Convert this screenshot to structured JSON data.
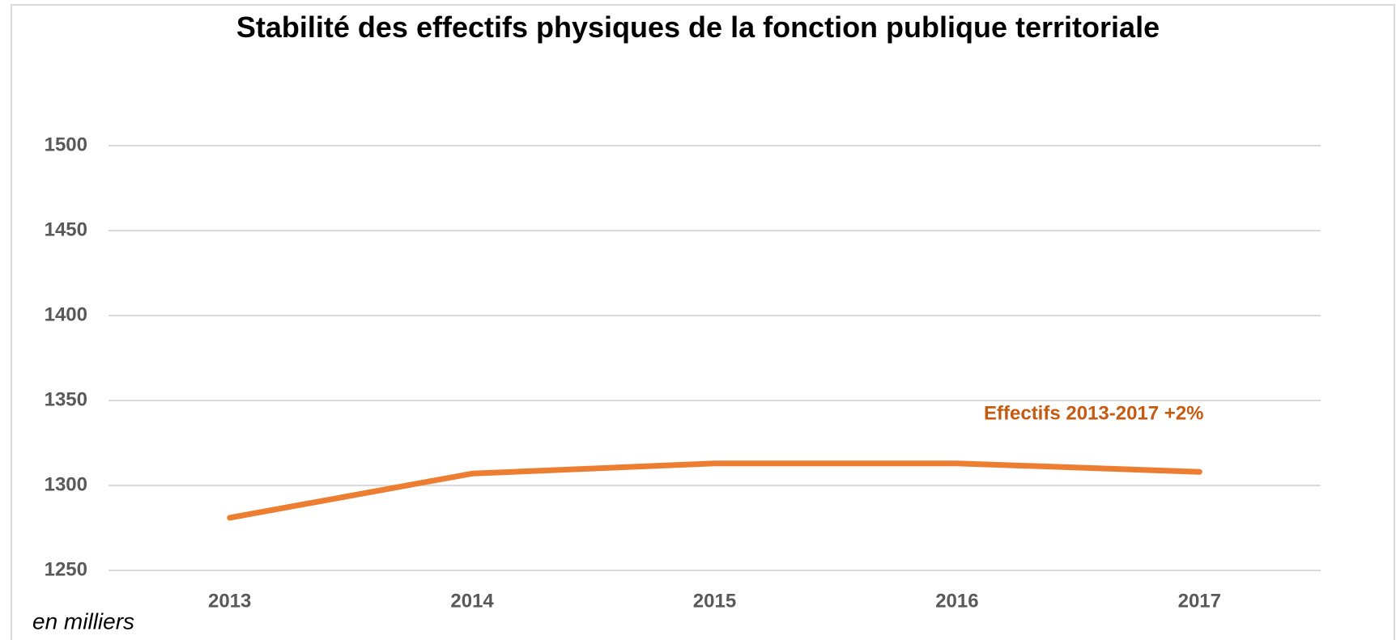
{
  "chart_data": {
    "type": "line",
    "title": "Stabilité des effectifs physiques de la fonction publique territoriale",
    "annotation": "Effectifs 2013-2017 +2%",
    "note": "en milliers",
    "categories": [
      "2013",
      "2014",
      "2015",
      "2016",
      "2017"
    ],
    "series": [
      {
        "name": "Effectifs",
        "color": "#ed7d31",
        "values": [
          1281,
          1307,
          1313,
          1313,
          1308
        ]
      }
    ],
    "ylim": [
      1250,
      1500
    ],
    "yticks": [
      1250,
      1300,
      1350,
      1400,
      1450,
      1500
    ],
    "grid": true
  }
}
